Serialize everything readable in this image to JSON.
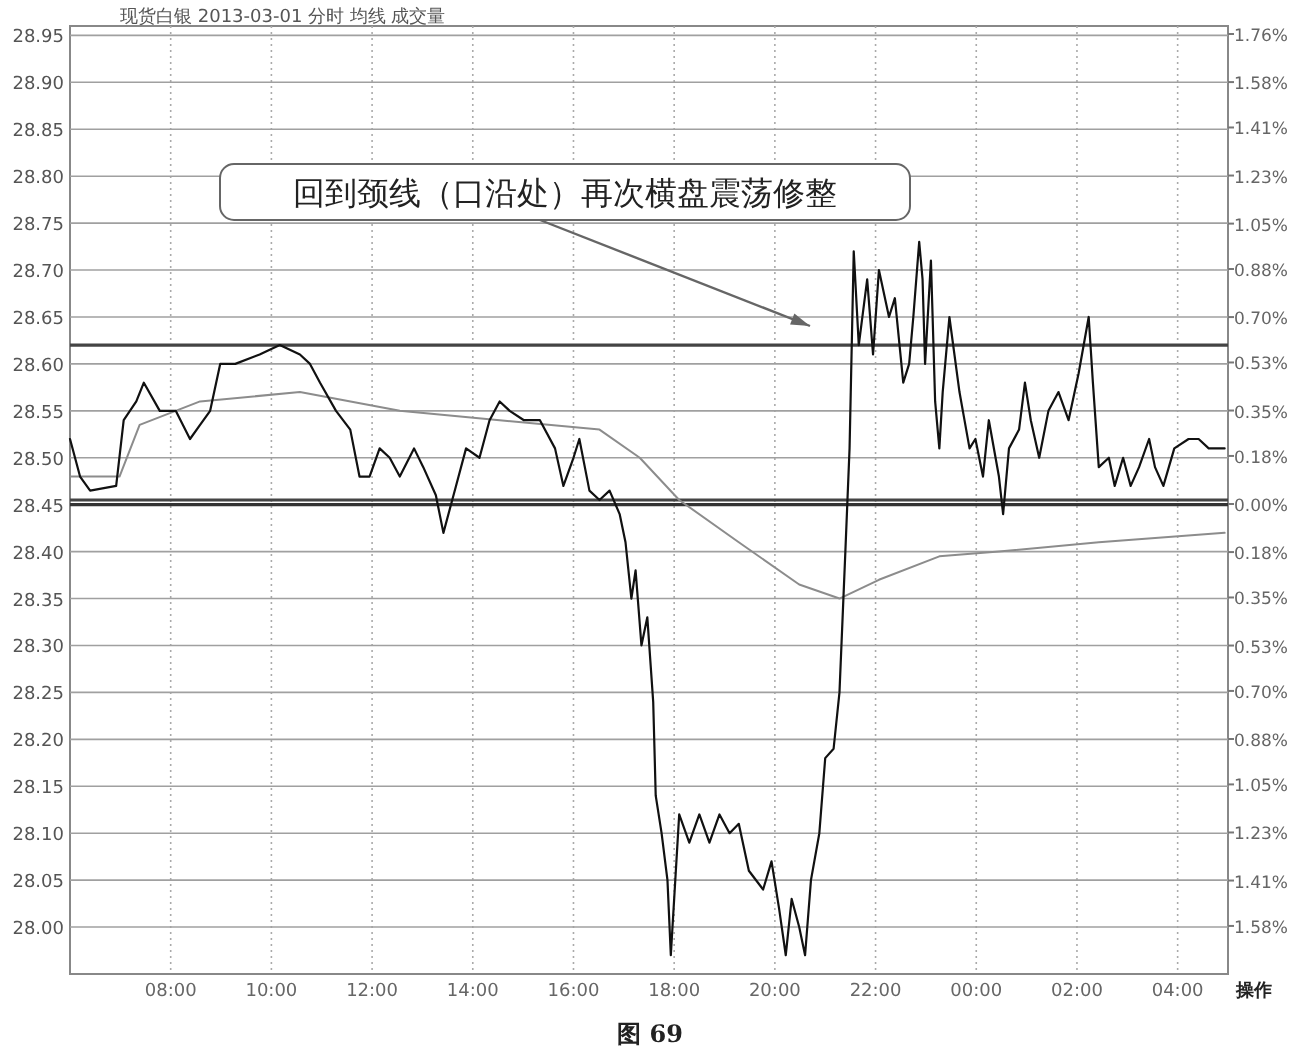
{
  "chart_data": {
    "type": "line",
    "title": "现货白银  2013-03-01  分时  均线  成交量",
    "xlim": [
      "2013-03-01T06:00",
      "2013-03-02T05:00"
    ],
    "ylim": [
      27.95,
      28.96
    ],
    "y2lim": [
      -1.76,
      1.79
    ],
    "xticks": [
      {
        "value": "2013-03-01T08:00",
        "label": "08:00"
      },
      {
        "value": "2013-03-01T10:00",
        "label": "10:00"
      },
      {
        "value": "2013-03-01T12:00",
        "label": "12:00"
      },
      {
        "value": "2013-03-01T14:00",
        "label": "14:00"
      },
      {
        "value": "2013-03-01T16:00",
        "label": "16:00"
      },
      {
        "value": "2013-03-01T18:00",
        "label": "18:00"
      },
      {
        "value": "2013-03-01T20:00",
        "label": "20:00"
      },
      {
        "value": "2013-03-01T22:00",
        "label": "22:00"
      },
      {
        "value": "2013-03-02T00:00",
        "label": "00:00"
      },
      {
        "value": "2013-03-02T02:00",
        "label": "02:00"
      },
      {
        "value": "2013-03-02T04:00",
        "label": "04:00"
      }
    ],
    "yticks": [
      {
        "value": 28.0,
        "label": "28.00"
      },
      {
        "value": 28.05,
        "label": "28.05"
      },
      {
        "value": 28.1,
        "label": "28.10"
      },
      {
        "value": 28.15,
        "label": "28.15"
      },
      {
        "value": 28.2,
        "label": "28.20"
      },
      {
        "value": 28.25,
        "label": "28.25"
      },
      {
        "value": 28.3,
        "label": "28.30"
      },
      {
        "value": 28.35,
        "label": "28.35"
      },
      {
        "value": 28.4,
        "label": "28.40"
      },
      {
        "value": 28.45,
        "label": "28.45"
      },
      {
        "value": 28.5,
        "label": "28.50"
      },
      {
        "value": 28.55,
        "label": "28.55"
      },
      {
        "value": 28.6,
        "label": "28.60"
      },
      {
        "value": 28.65,
        "label": "28.65"
      },
      {
        "value": 28.7,
        "label": "28.70"
      },
      {
        "value": 28.75,
        "label": "28.75"
      },
      {
        "value": 28.8,
        "label": "28.80"
      },
      {
        "value": 28.85,
        "label": "28.85"
      },
      {
        "value": 28.9,
        "label": "28.90"
      },
      {
        "value": 28.95,
        "label": "28.95"
      }
    ],
    "y2ticks": [
      {
        "value": -1.58,
        "label": "1.58%"
      },
      {
        "value": -1.41,
        "label": "1.41%"
      },
      {
        "value": -1.23,
        "label": "1.23%"
      },
      {
        "value": -1.05,
        "label": "1.05%"
      },
      {
        "value": -0.88,
        "label": "0.88%"
      },
      {
        "value": -0.7,
        "label": "0.70%"
      },
      {
        "value": -0.53,
        "label": "0.53%"
      },
      {
        "value": -0.35,
        "label": "0.35%"
      },
      {
        "value": -0.18,
        "label": "0.18%"
      },
      {
        "value": 0,
        "label": "0.00%"
      },
      {
        "value": 0.18,
        "label": "0.18%"
      },
      {
        "value": 0.35,
        "label": "0.35%"
      },
      {
        "value": 0.53,
        "label": "0.53%"
      },
      {
        "value": 0.7,
        "label": "0.70%"
      },
      {
        "value": 0.88,
        "label": "0.88%"
      },
      {
        "value": 1.05,
        "label": "1.05%"
      },
      {
        "value": 1.23,
        "label": "1.23%"
      },
      {
        "value": 1.41,
        "label": "1.41%"
      },
      {
        "value": 1.58,
        "label": "1.58%"
      },
      {
        "value": 1.76,
        "label": "1.76%"
      }
    ],
    "grid": true,
    "series": [
      {
        "color": "#111111",
        "x": [
          "2013-03-01T06:00",
          "2013-03-01T06:12",
          "2013-03-01T06:24",
          "2013-03-01T06:55",
          "2013-03-01T07:04",
          "2013-03-01T07:19",
          "2013-03-01T07:28",
          "2013-03-01T07:47",
          "2013-03-01T08:06",
          "2013-03-01T08:23",
          "2013-03-01T08:35",
          "2013-03-01T08:47",
          "2013-03-01T08:59",
          "2013-03-01T09:17",
          "2013-03-01T09:46",
          "2013-03-01T10:10",
          "2013-03-01T10:34",
          "2013-03-01T10:46",
          "2013-03-01T10:58",
          "2013-03-01T11:17",
          "2013-03-01T11:34",
          "2013-03-01T11:45",
          "2013-03-01T11:57",
          "2013-03-01T12:09",
          "2013-03-01T12:21",
          "2013-03-01T12:33",
          "2013-03-01T12:50",
          "2013-03-01T13:01",
          "2013-03-01T13:16",
          "2013-03-01T13:25",
          "2013-03-01T13:40",
          "2013-03-01T13:52",
          "2013-03-01T14:08",
          "2013-03-01T14:20",
          "2013-03-01T14:32",
          "2013-03-01T14:44",
          "2013-03-01T15:01",
          "2013-03-01T15:20",
          "2013-03-01T15:38",
          "2013-03-01T15:48",
          "2013-03-01T16:00",
          "2013-03-01T16:07",
          "2013-03-01T16:19",
          "2013-03-01T16:31",
          "2013-03-01T16:43",
          "2013-03-01T16:55",
          "2013-03-01T17:02",
          "2013-03-01T17:09",
          "2013-03-01T17:14",
          "2013-03-01T17:21",
          "2013-03-01T17:28",
          "2013-03-01T17:35",
          "2013-03-01T17:38",
          "2013-03-01T17:45",
          "2013-03-01T17:52",
          "2013-03-01T17:56",
          "2013-03-01T18:06",
          "2013-03-01T18:18",
          "2013-03-01T18:30",
          "2013-03-01T18:42",
          "2013-03-01T18:54",
          "2013-03-01T19:06",
          "2013-03-01T19:17",
          "2013-03-01T19:29",
          "2013-03-01T19:46",
          "2013-03-01T19:56",
          "2013-03-01T20:05",
          "2013-03-01T20:13",
          "2013-03-01T20:20",
          "2013-03-01T20:29",
          "2013-03-01T20:36",
          "2013-03-01T20:43",
          "2013-03-01T20:53",
          "2013-03-01T21:00",
          "2013-03-01T21:10",
          "2013-03-01T21:17",
          "2013-03-01T21:24",
          "2013-03-01T21:29",
          "2013-03-01T21:34",
          "2013-03-01T21:40",
          "2013-03-01T21:50",
          "2013-03-01T21:57",
          "2013-03-01T22:04",
          "2013-03-01T22:16",
          "2013-03-01T22:23",
          "2013-03-01T22:33",
          "2013-03-01T22:40",
          "2013-03-01T22:45",
          "2013-03-01T22:52",
          "2013-03-01T22:56",
          "2013-03-01T22:59",
          "2013-03-01T23:06",
          "2013-03-01T23:11",
          "2013-03-01T23:16",
          "2013-03-01T23:20",
          "2013-03-01T23:28",
          "2013-03-01T23:40",
          "2013-03-01T23:44",
          "2013-03-01T23:52",
          "2013-03-01T23:59",
          "2013-03-02T00:08",
          "2013-03-02T00:15",
          "2013-03-02T00:27",
          "2013-03-02T00:32",
          "2013-03-02T00:39",
          "2013-03-02T00:51",
          "2013-03-02T00:58",
          "2013-03-02T01:05",
          "2013-03-02T01:15",
          "2013-03-02T01:26",
          "2013-03-02T01:38",
          "2013-03-02T01:50",
          "2013-03-02T02:02",
          "2013-03-02T02:14",
          "2013-03-02T02:19",
          "2013-03-02T02:26",
          "2013-03-02T02:38",
          "2013-03-02T02:45",
          "2013-03-02T02:55",
          "2013-03-02T03:04",
          "2013-03-02T03:14",
          "2013-03-02T03:26",
          "2013-03-02T03:33",
          "2013-03-02T03:43",
          "2013-03-02T03:56",
          "2013-03-02T04:13",
          "2013-03-02T04:25",
          "2013-03-02T04:37",
          "2013-03-02T04:56"
        ],
        "values": [
          28.52,
          28.48,
          28.465,
          28.47,
          28.54,
          28.56,
          28.58,
          28.55,
          28.55,
          28.52,
          28.535,
          28.55,
          28.6,
          28.6,
          28.61,
          28.62,
          28.61,
          28.6,
          28.58,
          28.55,
          28.53,
          28.48,
          28.48,
          28.51,
          28.5,
          28.48,
          28.51,
          28.49,
          28.46,
          28.42,
          28.47,
          28.51,
          28.5,
          28.54,
          28.56,
          28.55,
          28.54,
          28.54,
          28.51,
          28.47,
          28.5,
          28.52,
          28.465,
          28.455,
          28.465,
          28.44,
          28.41,
          28.35,
          28.38,
          28.3,
          28.33,
          28.24,
          28.14,
          28.1,
          28.05,
          27.97,
          28.12,
          28.09,
          28.12,
          28.09,
          28.12,
          28.1,
          28.11,
          28.06,
          28.04,
          28.07,
          28.02,
          27.97,
          28.03,
          28.0,
          27.97,
          28.05,
          28.1,
          28.18,
          28.19,
          28.25,
          28.4,
          28.51,
          28.72,
          28.62,
          28.69,
          28.61,
          28.7,
          28.65,
          28.67,
          28.58,
          28.6,
          28.65,
          28.73,
          28.69,
          28.6,
          28.71,
          28.56,
          28.51,
          28.57,
          28.65,
          28.57,
          28.55,
          28.51,
          28.52,
          28.48,
          28.54,
          28.48,
          28.44,
          28.51,
          28.53,
          28.58,
          28.54,
          28.5,
          28.55,
          28.57,
          28.54,
          28.59,
          28.65,
          28.58,
          28.49,
          28.5,
          28.47,
          28.5,
          28.47,
          28.49,
          28.52,
          28.49,
          28.47,
          28.51,
          28.52,
          28.52,
          28.51,
          28.51
        ]
      },
      {
        "color": "#8c8c8c",
        "x": [
          "2013-03-01T06:00",
          "2013-03-01T06:59",
          "2013-03-01T07:23",
          "2013-03-01T08:35",
          "2013-03-01T10:34",
          "2013-03-01T12:33",
          "2013-03-01T14:32",
          "2013-03-01T16:31",
          "2013-03-01T17:19",
          "2013-03-01T18:06",
          "2013-03-01T19:17",
          "2013-03-01T20:29",
          "2013-03-01T21:17",
          "2013-03-01T22:04",
          "2013-03-01T23:16",
          "2013-03-02T00:27",
          "2013-03-02T02:26",
          "2013-03-02T04:56"
        ],
        "values": [
          28.48,
          28.48,
          28.535,
          28.56,
          28.57,
          28.55,
          28.54,
          28.53,
          28.5,
          28.455,
          28.41,
          28.365,
          28.35,
          28.37,
          28.395,
          28.4,
          28.41,
          28.42
        ]
      }
    ],
    "ref_lines": [
      {
        "axis": "y",
        "value": 28.62,
        "color": "#444444"
      },
      {
        "axis": "y",
        "value": 28.455,
        "color": "#444444"
      },
      {
        "axis": "y",
        "value": 28.45,
        "color": "#333333"
      }
    ],
    "annotations": [
      "回到颈线（口沿处）再次横盘震荡修整",
      "操作",
      "图 69"
    ]
  }
}
